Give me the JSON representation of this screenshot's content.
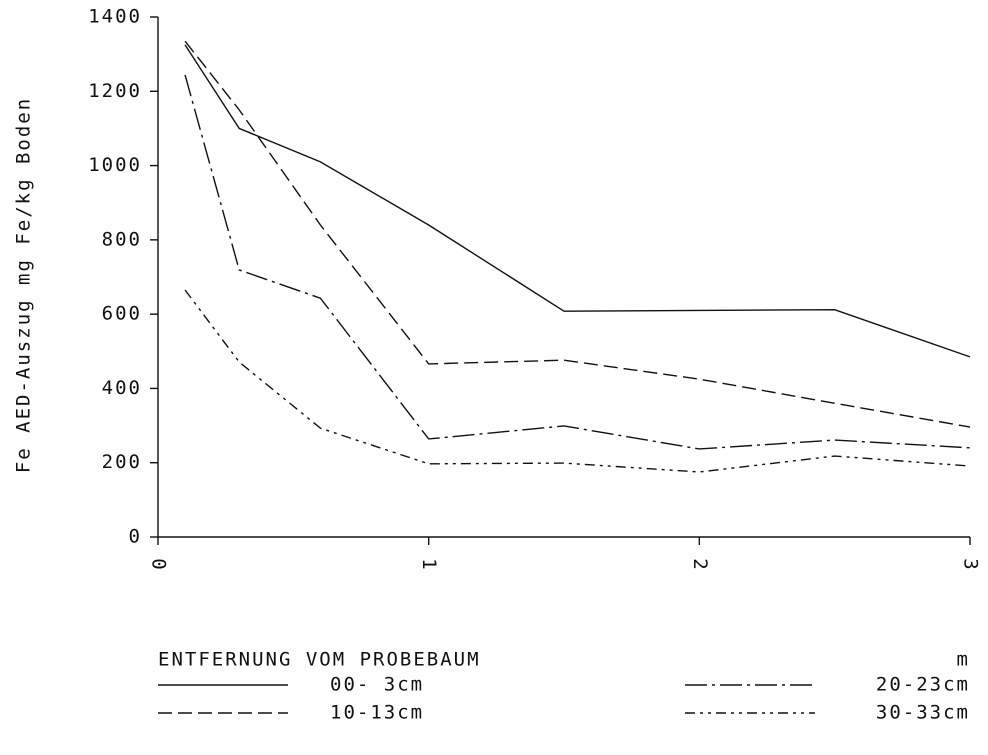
{
  "chart_data": {
    "type": "line",
    "y_label": "Fe AED-Auszug   mg Fe/kg Boden",
    "x_label": "ENTFERNUNG VOM PROBEBAUM",
    "x_unit": "m",
    "x": [
      0.1,
      0.3,
      0.6,
      1.0,
      1.5,
      2.0,
      2.5,
      3.0
    ],
    "series": [
      {
        "name": "00- 3cm",
        "color": "#111111",
        "values": [
          1325,
          1100,
          1010,
          840,
          608,
          610,
          612,
          485
        ]
      },
      {
        "name": "10-13cm",
        "color": "#111111",
        "values": [
          1335,
          1150,
          840,
          466,
          476,
          425,
          360,
          296
        ]
      },
      {
        "name": "20-23cm",
        "color": "#111111",
        "values": [
          1244,
          719,
          643,
          264,
          299,
          237,
          261,
          240
        ]
      },
      {
        "name": "30-33cm",
        "color": "#111111",
        "values": [
          665,
          471,
          293,
          197,
          199,
          175,
          218,
          191
        ]
      }
    ],
    "xlim": [
      0,
      3
    ],
    "xticks": [
      0,
      1,
      2,
      3
    ],
    "ylim": [
      0,
      1400
    ],
    "yticks": [
      0,
      200,
      400,
      600,
      800,
      1000,
      1200,
      1400
    ],
    "grid": false
  }
}
